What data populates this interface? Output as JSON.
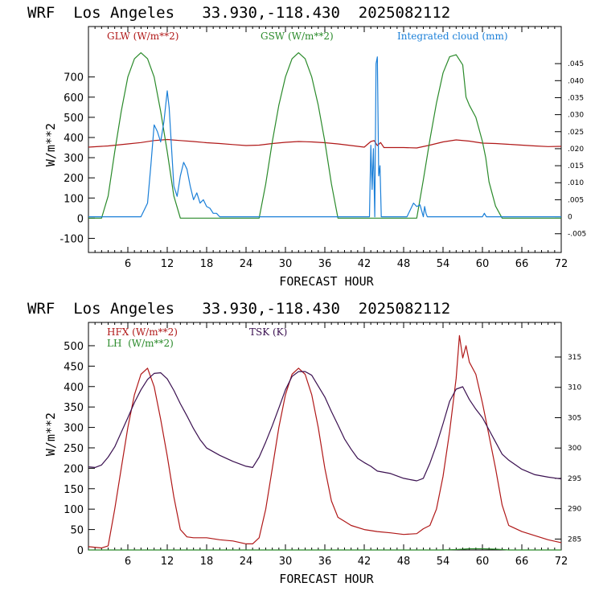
{
  "colors": {
    "red": "#b01818",
    "green": "#2a8a2a",
    "blue": "#1a7fd8",
    "purple": "#3a1050",
    "axis": "#000000"
  },
  "chart_data": [
    {
      "type": "line",
      "header": "WRF  Los Angeles   33.930,-118.430  2025082112",
      "xlabel": "FORECAST HOUR",
      "ylabel": "W/m**2",
      "xlim": [
        0,
        72
      ],
      "ylim": [
        -170,
        950
      ],
      "xticks": [
        6,
        12,
        18,
        24,
        30,
        36,
        42,
        48,
        54,
        60,
        66,
        72
      ],
      "yticks": [
        -100,
        0,
        100,
        200,
        300,
        400,
        500,
        600,
        700
      ],
      "y2lim": [
        -0.0105,
        0.0559
      ],
      "y2ticks": [
        -0.005,
        0,
        0.005,
        0.01,
        0.015,
        0.02,
        0.025,
        0.03,
        0.035,
        0.04,
        0.045
      ],
      "y2ticklabels": [
        "-.005",
        "0",
        ".005",
        ".010",
        ".015",
        ".020",
        ".025",
        ".030",
        ".035",
        ".040",
        ".045"
      ],
      "legend": [
        {
          "label": "GLW (W/m**2)",
          "color": "#b01818"
        },
        {
          "label": "GSW (W/m**2)",
          "color": "#2a8a2a"
        },
        {
          "label": "Integrated cloud (mm)",
          "color": "#1a7fd8"
        }
      ],
      "series": [
        {
          "name": "GLW (W/m**2)",
          "color": "#b01818",
          "axis": "left",
          "x": [
            0,
            3,
            6,
            8,
            10,
            12,
            14,
            16,
            18,
            20,
            22,
            24,
            26,
            28,
            30,
            32,
            34,
            36,
            38,
            40,
            42,
            43,
            43.5,
            44,
            44.5,
            45,
            46,
            48,
            50,
            52,
            54,
            56,
            58,
            60,
            62,
            64,
            66,
            68,
            70,
            72
          ],
          "y": [
            352,
            358,
            368,
            375,
            385,
            390,
            385,
            380,
            374,
            370,
            365,
            360,
            362,
            370,
            376,
            380,
            378,
            374,
            368,
            360,
            352,
            380,
            385,
            360,
            375,
            350,
            350,
            350,
            348,
            362,
            378,
            388,
            382,
            372,
            370,
            366,
            362,
            358,
            355,
            356
          ]
        },
        {
          "name": "GSW (W/m**2)",
          "color": "#2a8a2a",
          "axis": "left",
          "x": [
            0,
            2,
            3,
            4,
            5,
            6,
            7,
            8,
            9,
            10,
            11,
            12,
            13,
            14,
            15,
            16,
            24,
            25,
            26,
            27,
            28,
            29,
            30,
            31,
            32,
            33,
            34,
            35,
            36,
            37,
            38,
            39,
            40,
            48,
            49,
            50,
            51,
            52,
            53,
            54,
            55,
            56,
            57,
            57.5,
            58,
            59,
            60,
            60.5,
            61,
            62,
            63,
            72
          ],
          "y": [
            0,
            0,
            110,
            330,
            530,
            700,
            790,
            820,
            790,
            700,
            530,
            330,
            110,
            0,
            0,
            0,
            0,
            0,
            0,
            170,
            380,
            560,
            700,
            790,
            820,
            790,
            700,
            560,
            380,
            170,
            0,
            0,
            0,
            0,
            0,
            0,
            190,
            390,
            570,
            720,
            800,
            810,
            760,
            600,
            560,
            500,
            380,
            300,
            180,
            60,
            0,
            0
          ]
        },
        {
          "name": "Integrated cloud (mm)",
          "color": "#1a7fd8",
          "axis": "right",
          "x": [
            0,
            7,
            8,
            9,
            9.5,
            10,
            10.5,
            11,
            11.5,
            12,
            12.3,
            12.6,
            13,
            13.5,
            14,
            14.5,
            15,
            15.5,
            16,
            16.5,
            17,
            17.5,
            18,
            18.5,
            19,
            19.5,
            20,
            20.5,
            40,
            42,
            42.8,
            43,
            43.2,
            43.4,
            43.6,
            43.8,
            44,
            44.2,
            44.4,
            44.6,
            44.8,
            45,
            46,
            48,
            48.5,
            49,
            49.5,
            50,
            50.5,
            51,
            51.2,
            51.4,
            51.6,
            52,
            60,
            60.3,
            60.6,
            61,
            72
          ],
          "y": [
            0,
            0,
            0,
            0.004,
            0.015,
            0.027,
            0.025,
            0.022,
            0.028,
            0.037,
            0.032,
            0.022,
            0.009,
            0.006,
            0.012,
            0.016,
            0.014,
            0.009,
            0.005,
            0.007,
            0.004,
            0.005,
            0.003,
            0.0025,
            0.001,
            0.001,
            0,
            0,
            0,
            0,
            0,
            0.021,
            0.008,
            0.02,
            0,
            0.045,
            0.047,
            0.012,
            0.015,
            0,
            0,
            0,
            0,
            0,
            0,
            0.002,
            0.004,
            0.003,
            0.0035,
            0,
            0.003,
            0.001,
            0,
            0,
            0,
            0.001,
            0,
            0,
            0
          ]
        }
      ]
    },
    {
      "type": "line",
      "header": "WRF  Los Angeles   33.930,-118.430  2025082112",
      "xlabel": "FORECAST HOUR",
      "ylabel": "W/m**2",
      "xlim": [
        0,
        72
      ],
      "ylim": [
        0,
        557
      ],
      "xticks": [
        6,
        12,
        18,
        24,
        30,
        36,
        42,
        48,
        54,
        60,
        66,
        72
      ],
      "yticks": [
        0,
        50,
        100,
        150,
        200,
        250,
        300,
        350,
        400,
        450,
        500
      ],
      "y2lim": [
        283.2,
        320.7
      ],
      "y2ticks": [
        285,
        290,
        295,
        300,
        305,
        310,
        315
      ],
      "y2ticklabels": [
        "285",
        "290",
        "295",
        "300",
        "305",
        "310",
        "315"
      ],
      "legend": [
        {
          "label": "HFX (W/m**2)",
          "color": "#b01818"
        },
        {
          "label": "LH  (W/m**2)",
          "color": "#2a8a2a"
        },
        {
          "label": "TSK (K)",
          "color": "#3a1050"
        }
      ],
      "series": [
        {
          "name": "HFX (W/m**2)",
          "color": "#b01818",
          "axis": "left",
          "x": [
            0,
            2,
            3,
            4,
            5,
            6,
            7,
            8,
            9,
            10,
            11,
            12,
            13,
            14,
            15,
            16,
            18,
            20,
            22,
            24,
            25,
            26,
            27,
            28,
            29,
            30,
            31,
            32,
            33,
            34,
            35,
            36,
            37,
            38,
            39,
            40,
            42,
            44,
            46,
            48,
            50,
            51,
            52,
            53,
            54,
            55,
            56,
            56.5,
            57,
            57.5,
            58,
            59,
            60,
            61,
            62,
            63,
            64,
            66,
            68,
            70,
            72
          ],
          "y": [
            8,
            5,
            10,
            100,
            200,
            300,
            380,
            430,
            445,
            400,
            320,
            230,
            130,
            50,
            32,
            30,
            30,
            25,
            22,
            15,
            15,
            30,
            100,
            200,
            300,
            380,
            430,
            445,
            430,
            380,
            300,
            200,
            120,
            80,
            70,
            60,
            50,
            45,
            42,
            38,
            40,
            52,
            60,
            100,
            180,
            290,
            420,
            525,
            470,
            500,
            460,
            430,
            360,
            280,
            200,
            110,
            60,
            45,
            35,
            25,
            18
          ]
        },
        {
          "name": "LH  (W/m**2)",
          "color": "#2a8a2a",
          "axis": "left",
          "x": [
            0,
            54,
            56,
            58,
            60,
            62,
            64,
            72
          ],
          "y": [
            0,
            0,
            1,
            3,
            3,
            2,
            0,
            0
          ]
        },
        {
          "name": "TSK (K)",
          "color": "#3a1050",
          "axis": "right",
          "x": [
            0,
            1,
            2,
            3,
            4,
            5,
            6,
            7,
            8,
            9,
            10,
            11,
            12,
            13,
            14,
            15,
            16,
            17,
            18,
            20,
            22,
            24,
            25,
            26,
            27,
            28,
            29,
            30,
            31,
            32,
            33,
            34,
            35,
            36,
            37,
            38,
            39,
            40,
            41,
            42,
            43,
            44,
            45,
            46,
            47,
            48,
            49,
            50,
            51,
            52,
            53,
            54,
            55,
            56,
            56.5,
            57,
            58,
            59,
            60,
            61,
            62,
            63,
            64,
            66,
            68,
            70,
            72
          ],
          "y": [
            296.9,
            296.8,
            297.2,
            298.5,
            300.2,
            302.6,
            305.0,
            307.5,
            309.6,
            311.3,
            312.3,
            312.4,
            311.4,
            309.5,
            307.3,
            305.3,
            303.2,
            301.4,
            300.0,
            298.8,
            297.8,
            297.0,
            296.8,
            298.5,
            301.0,
            303.7,
            306.6,
            309.6,
            311.8,
            312.6,
            312.6,
            312.0,
            310.2,
            308.4,
            306.0,
            303.8,
            301.5,
            299.8,
            298.3,
            297.6,
            297.0,
            296.2,
            296.0,
            295.8,
            295.4,
            295.0,
            294.8,
            294.6,
            295.0,
            297.5,
            300.5,
            304.0,
            307.7,
            309.7,
            309.9,
            310.1,
            308.0,
            306.4,
            305.0,
            303.0,
            301.0,
            299.0,
            298.0,
            296.5,
            295.6,
            295.2,
            294.9
          ]
        }
      ]
    }
  ]
}
